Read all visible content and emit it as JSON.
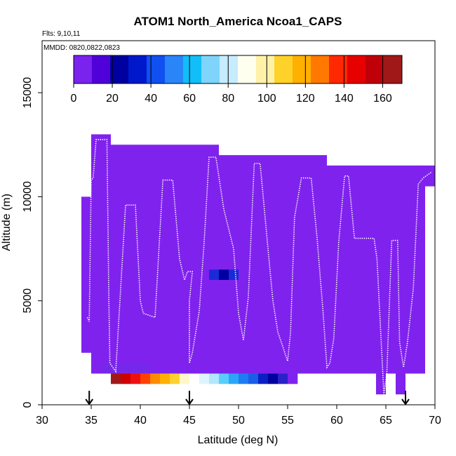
{
  "chart_data": {
    "type": "heatmap",
    "title": "ATOM1 North_America Ncoa1_CAPS",
    "flights_label": "Flts: 9,10,11",
    "dates_label": "MMDD: 0820,0822,0823",
    "xlabel": "Latitude (deg N)",
    "ylabel": "Altitude (m)",
    "xlim": [
      30,
      70
    ],
    "ylim": [
      0,
      17500
    ],
    "x_ticks": [
      30,
      35,
      40,
      45,
      50,
      55,
      60,
      65,
      70
    ],
    "y_ticks": [
      0,
      5000,
      10000,
      15000
    ],
    "colorbar": {
      "range": [
        0,
        170
      ],
      "ticks": [
        0,
        20,
        40,
        60,
        80,
        100,
        120,
        140,
        160
      ],
      "colors": [
        "#7a22ee",
        "#5000d8",
        "#0000a0",
        "#0018cc",
        "#1050f0",
        "#2a86f8",
        "#12bef8",
        "#7ed4fa",
        "#c6ecfd",
        "#fffff0",
        "#fff1a8",
        "#ffd22a",
        "#ffb000",
        "#ff7800",
        "#ff2800",
        "#e60000",
        "#c00008",
        "#a01818"
      ]
    },
    "background_value_color": "#8022ee",
    "cells": [
      {
        "lat": [
          34,
          35
        ],
        "alt": [
          2500,
          10000
        ],
        "color": "#8022ee"
      },
      {
        "lat": [
          35,
          37
        ],
        "alt": [
          1500,
          13000
        ],
        "color": "#8022ee"
      },
      {
        "lat": [
          37,
          48
        ],
        "alt": [
          1500,
          12500
        ],
        "color": "#8022ee"
      },
      {
        "lat": [
          48,
          59
        ],
        "alt": [
          1500,
          12000
        ],
        "color": "#8022ee"
      },
      {
        "lat": [
          59,
          69
        ],
        "alt": [
          1500,
          11500
        ],
        "color": "#8022ee"
      },
      {
        "lat": [
          69,
          70
        ],
        "alt": [
          10500,
          11500
        ],
        "color": "#8022ee"
      },
      {
        "lat": [
          68,
          69
        ],
        "alt": [
          6000,
          11500
        ],
        "color": "#8022ee"
      },
      {
        "lat": [
          64,
          65
        ],
        "alt": [
          500,
          1500
        ],
        "color": "#8022ee"
      },
      {
        "lat": [
          66,
          67
        ],
        "alt": [
          500,
          1500
        ],
        "color": "#8022ee"
      },
      {
        "lat": [
          36,
          41
        ],
        "alt": [
          1500,
          2000
        ],
        "color": "#7628ea"
      },
      {
        "lat": [
          47,
          48
        ],
        "alt": [
          6000,
          6500
        ],
        "color": "#1a2ad8"
      },
      {
        "lat": [
          48,
          49
        ],
        "alt": [
          6000,
          6500
        ],
        "color": "#0000a0"
      },
      {
        "lat": [
          49,
          50
        ],
        "alt": [
          6000,
          6500
        ],
        "color": "#1a2ad8"
      }
    ],
    "bottom_strip": {
      "alt": [
        1000,
        1500
      ],
      "lat_start": 37,
      "colors": [
        "#a01818",
        "#d00000",
        "#ee1010",
        "#ff4000",
        "#ff8c00",
        "#ffb000",
        "#ffd030",
        "#fff7c8",
        "#ffffff",
        "#ddf4fd",
        "#b2e6fb",
        "#58cffb",
        "#2aa6f8",
        "#1e7cf2",
        "#1a5ee8",
        "#0a20c4",
        "#0000a0",
        "#2a22c8",
        "#8022ee"
      ]
    },
    "flight_track": [
      [
        34.6,
        4200
      ],
      [
        34.8,
        4000
      ],
      [
        35.0,
        10800
      ],
      [
        35.2,
        10900
      ],
      [
        35.5,
        12750
      ],
      [
        36.2,
        12750
      ],
      [
        36.6,
        12750
      ],
      [
        36.8,
        5000
      ],
      [
        36.9,
        2000
      ],
      [
        37.5,
        1600
      ],
      [
        38.5,
        9600
      ],
      [
        39.5,
        9600
      ],
      [
        40.0,
        5000
      ],
      [
        40.3,
        4400
      ],
      [
        41.5,
        4200
      ],
      [
        42.3,
        10800
      ],
      [
        43.3,
        10800
      ],
      [
        44.0,
        7000
      ],
      [
        44.5,
        6000
      ],
      [
        44.8,
        6400
      ],
      [
        45.3,
        6400
      ],
      [
        45.0,
        5000
      ],
      [
        45.0,
        2000
      ],
      [
        45.3,
        2500
      ],
      [
        46.0,
        4500
      ],
      [
        46.5,
        7800
      ],
      [
        47.0,
        11900
      ],
      [
        47.7,
        11900
      ],
      [
        48.5,
        9400
      ],
      [
        49.5,
        7500
      ],
      [
        50.0,
        4400
      ],
      [
        50.5,
        3100
      ],
      [
        51.0,
        5200
      ],
      [
        51.6,
        11600
      ],
      [
        52.2,
        11600
      ],
      [
        53.0,
        7500
      ],
      [
        53.5,
        5000
      ],
      [
        54.0,
        3500
      ],
      [
        55.0,
        2100
      ],
      [
        55.3,
        3500
      ],
      [
        55.7,
        9000
      ],
      [
        56.4,
        10900
      ],
      [
        57.4,
        10900
      ],
      [
        58.0,
        8000
      ],
      [
        58.6,
        4500
      ],
      [
        59.0,
        1800
      ],
      [
        59.3,
        2000
      ],
      [
        59.7,
        3200
      ],
      [
        60.2,
        7800
      ],
      [
        60.8,
        11000
      ],
      [
        61.2,
        11000
      ],
      [
        61.8,
        8000
      ],
      [
        63.8,
        8000
      ],
      [
        64.1,
        7000
      ],
      [
        64.8,
        500
      ],
      [
        65.1,
        1500
      ],
      [
        65.6,
        7900
      ],
      [
        66.2,
        7900
      ],
      [
        66.4,
        3000
      ],
      [
        66.8,
        1800
      ],
      [
        67.2,
        3000
      ],
      [
        67.8,
        5600
      ],
      [
        68.3,
        10600
      ],
      [
        68.8,
        10900
      ],
      [
        69.7,
        11200
      ]
    ],
    "markers_lat": [
      34.8,
      45.0,
      67.0
    ]
  }
}
